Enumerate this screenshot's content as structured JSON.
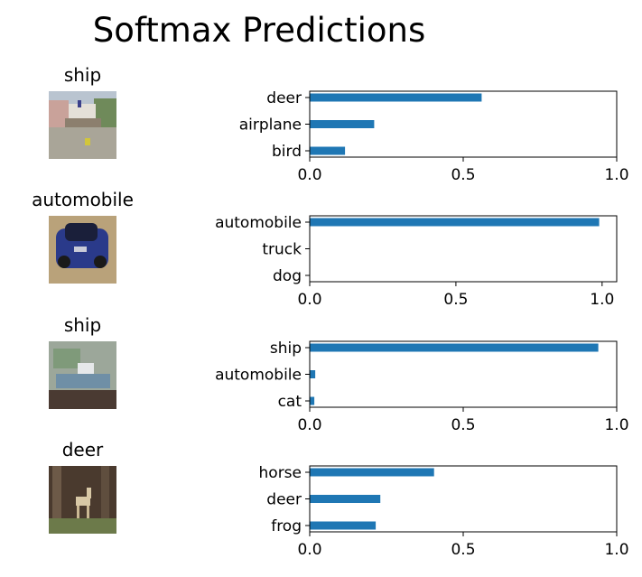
{
  "figure": {
    "title": "Softmax Predictions"
  },
  "bar_color": "#1f77b4",
  "chart_data": [
    {
      "type": "bar",
      "orientation": "horizontal",
      "image_label": "ship",
      "image_description": "ship thumbnail",
      "categories": [
        "deer",
        "airplane",
        "bird"
      ],
      "values": [
        0.56,
        0.21,
        0.115
      ],
      "xlim": [
        0,
        1.0
      ],
      "xticks": [
        "0.0",
        "0.5",
        "1.0"
      ]
    },
    {
      "type": "bar",
      "orientation": "horizontal",
      "image_label": "automobile",
      "image_description": "automobile thumbnail",
      "categories": [
        "automobile",
        "truck",
        "dog"
      ],
      "values": [
        0.99,
        0.0,
        0.0
      ],
      "xlim": [
        0,
        1.05
      ],
      "xticks": [
        "0.0",
        "0.5",
        "1.0"
      ]
    },
    {
      "type": "bar",
      "orientation": "horizontal",
      "image_label": "ship",
      "image_description": "ship thumbnail",
      "categories": [
        "ship",
        "automobile",
        "cat"
      ],
      "values": [
        0.94,
        0.018,
        0.015
      ],
      "xlim": [
        0,
        1.0
      ],
      "xticks": [
        "0.0",
        "0.5",
        "1.0"
      ]
    },
    {
      "type": "bar",
      "orientation": "horizontal",
      "image_label": "deer",
      "image_description": "deer thumbnail",
      "categories": [
        "horse",
        "deer",
        "frog"
      ],
      "values": [
        0.405,
        0.23,
        0.215
      ],
      "xlim": [
        0,
        1.0
      ],
      "xticks": [
        "0.0",
        "0.5",
        "1.0"
      ]
    }
  ]
}
